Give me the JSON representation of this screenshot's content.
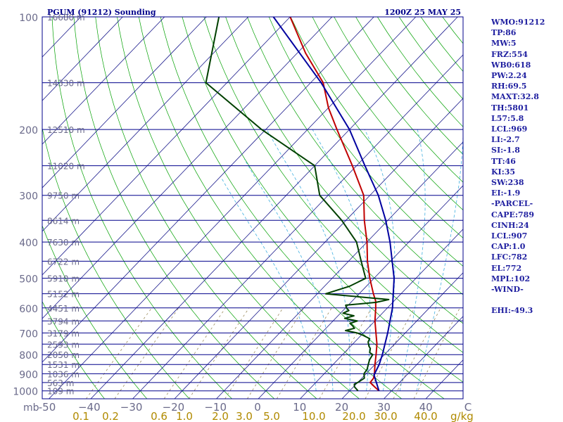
{
  "chart_data": {
    "type": "line",
    "title": "PGUM (91212) Sounding",
    "datetime": "1200Z 25 MAY 25",
    "pressure_levels": [
      {
        "p": 100,
        "label": "100",
        "height": "16680 m"
      },
      {
        "p": 150,
        "label": "",
        "height": "14330 m"
      },
      {
        "p": 200,
        "label": "200",
        "height": "12510 m"
      },
      {
        "p": 250,
        "label": "",
        "height": "11020 m"
      },
      {
        "p": 300,
        "label": "300",
        "height": "9750 m"
      },
      {
        "p": 350,
        "label": "",
        "height": "8614 m"
      },
      {
        "p": 400,
        "label": "400",
        "height": "7630 m"
      },
      {
        "p": 450,
        "label": "",
        "height": "6722 m"
      },
      {
        "p": 500,
        "label": "500",
        "height": "5910 m"
      },
      {
        "p": 550,
        "label": "",
        "height": "5152 m"
      },
      {
        "p": 600,
        "label": "600",
        "height": "4451 m"
      },
      {
        "p": 650,
        "label": "",
        "height": "3794 m"
      },
      {
        "p": 700,
        "label": "700",
        "height": "3179 m"
      },
      {
        "p": 750,
        "label": "",
        "height": "2593 m"
      },
      {
        "p": 800,
        "label": "800",
        "height": "2050 m"
      },
      {
        "p": 850,
        "label": "",
        "height": "1531 m"
      },
      {
        "p": 900,
        "label": "900",
        "height": "1036 m"
      },
      {
        "p": 950,
        "label": "",
        "height": "563 m"
      },
      {
        "p": 1000,
        "label": "1000",
        "height": "109 m"
      }
    ],
    "x_axis_unit": "mb",
    "x_ticks": [
      "-50",
      "−40",
      "−30",
      "−20",
      "−10",
      "0",
      "10",
      "20",
      "30",
      "40",
      "C"
    ],
    "mixing_ratio_ticks": [
      "0.1",
      "0.2",
      "0.6",
      "1.0",
      "2.0",
      "3.0",
      "5.0",
      "10.0",
      "20.0",
      "30.0",
      "40.0"
    ],
    "mixing_ratio_unit": "g/kg",
    "series": [
      {
        "role": "temperature",
        "color": "#c00000",
        "points": [
          [
            1000,
            27
          ],
          [
            975,
            25
          ],
          [
            950,
            23
          ],
          [
            925,
            22.8
          ],
          [
            900,
            22
          ],
          [
            850,
            20
          ],
          [
            800,
            18
          ],
          [
            750,
            15.8
          ],
          [
            700,
            13
          ],
          [
            650,
            10
          ],
          [
            600,
            7.2
          ],
          [
            575,
            5.6
          ],
          [
            550,
            3.4
          ],
          [
            500,
            -1
          ],
          [
            450,
            -5.5
          ],
          [
            400,
            -10
          ],
          [
            350,
            -15.6
          ],
          [
            300,
            -21.5
          ],
          [
            250,
            -31
          ],
          [
            200,
            -43
          ],
          [
            175,
            -50
          ],
          [
            150,
            -57
          ],
          [
            125,
            -68
          ],
          [
            100,
            -80
          ]
        ]
      },
      {
        "role": "dewpoint",
        "color": "#004000",
        "points": [
          [
            1000,
            22
          ],
          [
            975,
            20.2
          ],
          [
            960,
            19.6
          ],
          [
            950,
            20
          ],
          [
            925,
            20.6
          ],
          [
            900,
            19.5
          ],
          [
            875,
            19.2
          ],
          [
            850,
            18.4
          ],
          [
            825,
            17.6
          ],
          [
            800,
            17.2
          ],
          [
            790,
            16
          ],
          [
            770,
            15.2
          ],
          [
            760,
            14.4
          ],
          [
            750,
            13.8
          ],
          [
            740,
            13.2
          ],
          [
            725,
            12.8
          ],
          [
            710,
            10.4
          ],
          [
            700,
            8.5
          ],
          [
            690,
            5.2
          ],
          [
            680,
            6.8
          ],
          [
            670,
            5.8
          ],
          [
            660,
            4.6
          ],
          [
            650,
            5.8
          ],
          [
            640,
            2.2
          ],
          [
            630,
            3.8
          ],
          [
            620,
            0.6
          ],
          [
            610,
            1.4
          ],
          [
            600,
            0.2
          ],
          [
            590,
            -0.6
          ],
          [
            580,
            6
          ],
          [
            570,
            8.4
          ],
          [
            562,
            2
          ],
          [
            550,
            -8
          ],
          [
            525,
            -4
          ],
          [
            500,
            -2
          ],
          [
            450,
            -7
          ],
          [
            400,
            -12.5
          ],
          [
            350,
            -21
          ],
          [
            300,
            -32
          ],
          [
            250,
            -40
          ],
          [
            200,
            -61
          ],
          [
            150,
            -85
          ],
          [
            100,
            -97
          ]
        ]
      },
      {
        "role": "parcel",
        "color": "#0000a0",
        "points": [
          [
            1000,
            27
          ],
          [
            907,
            22.2
          ],
          [
            850,
            21
          ],
          [
            800,
            19.5
          ],
          [
            700,
            15.8
          ],
          [
            600,
            11.2
          ],
          [
            500,
            4.8
          ],
          [
            400,
            -4.5
          ],
          [
            350,
            -10.5
          ],
          [
            300,
            -18
          ],
          [
            250,
            -28
          ],
          [
            200,
            -40
          ],
          [
            150,
            -57.5
          ],
          [
            100,
            -84
          ]
        ]
      }
    ]
  },
  "indices": [
    "WMO:91212",
    "TP:86",
    "MW:5",
    "FRZ:554",
    "WB0:618",
    "PW:2.24",
    "RH:69.5",
    "MAXT:32.8",
    "TH:5801",
    "L57:5.8",
    "LCL:969",
    "LI:-2.7",
    "SI:-1.8",
    "TT:46",
    "KI:35",
    "SW:238",
    "EI:-1.9",
    "-PARCEL-",
    "CAPE:789",
    "CINH:24",
    "LCL:907",
    "CAP:1.0",
    "LFC:782",
    "EL:772",
    "MPL:102",
    "-WIND-",
    "",
    "EHI:-49.3"
  ],
  "colors": {
    "frame": "#00008b",
    "isobar": "#00008b",
    "isotherm": "#1a1a8c",
    "dry_adiabat": "#00a000",
    "moist_adiabat": "#40b0e0",
    "mixing_ratio": "#9a8a5a",
    "header_text": "#00008b",
    "index_text": "#1f1fa0",
    "axis_numbers": "#6a6a8a",
    "mixing_labels": "#b08a00"
  }
}
